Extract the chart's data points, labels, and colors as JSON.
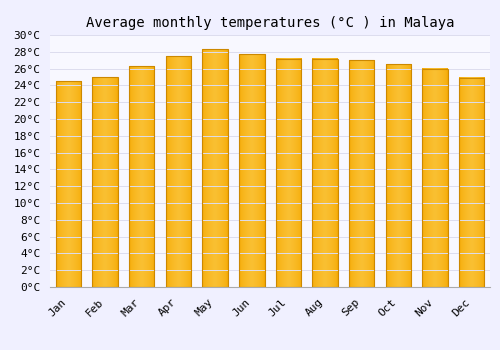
{
  "title": "Average monthly temperatures (°C ) in Malaya",
  "months": [
    "Jan",
    "Feb",
    "Mar",
    "Apr",
    "May",
    "Jun",
    "Jul",
    "Aug",
    "Sep",
    "Oct",
    "Nov",
    "Dec"
  ],
  "values": [
    24.5,
    25.0,
    26.3,
    27.5,
    28.3,
    27.7,
    27.2,
    27.2,
    27.0,
    26.5,
    26.0,
    24.9
  ],
  "bar_color_inner": "#FFD966",
  "bar_color_outer": "#F5A800",
  "bar_edge_color": "#CC8800",
  "background_color": "#F0F0FF",
  "plot_bg_color": "#F8F8FF",
  "grid_color": "#DDDDEE",
  "ylim": [
    0,
    30
  ],
  "ytick_step": 2,
  "title_fontsize": 10,
  "tick_fontsize": 8,
  "font_family": "monospace"
}
